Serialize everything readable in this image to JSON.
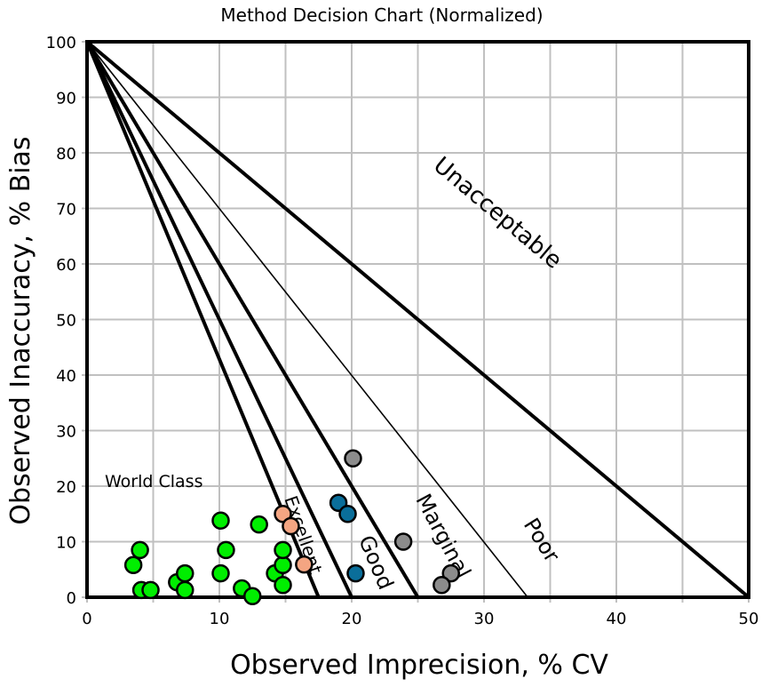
{
  "chart_data": {
    "type": "scatter",
    "title": "Method Decision Chart (Normalized)",
    "xlabel": "Observed Imprecision, % CV",
    "ylabel": "Observed Inaccuracy, % Bias",
    "xlim": [
      0,
      50
    ],
    "ylim": [
      0,
      100
    ],
    "xticks": [
      0,
      10,
      20,
      30,
      40,
      50
    ],
    "yticks": [
      0,
      10,
      20,
      30,
      40,
      50,
      60,
      70,
      80,
      90,
      100
    ],
    "grid": true,
    "decision_lines": [
      {
        "from": [
          0,
          100
        ],
        "to": [
          50,
          0
        ],
        "weight": "thick"
      },
      {
        "from": [
          0,
          100
        ],
        "to": [
          33.3,
          0
        ],
        "weight": "thin"
      },
      {
        "from": [
          0,
          100
        ],
        "to": [
          25,
          0
        ],
        "weight": "thick"
      },
      {
        "from": [
          0,
          100
        ],
        "to": [
          20,
          0
        ],
        "weight": "thick"
      },
      {
        "from": [
          0,
          100
        ],
        "to": [
          17.5,
          0
        ],
        "weight": "thick"
      }
    ],
    "zone_labels": [
      "Unacceptable",
      "Poor",
      "Marginal",
      "Good",
      "Excellent",
      "World Class"
    ],
    "series": [
      {
        "color": "#00ee00",
        "points": [
          [
            3.5,
            5.8
          ],
          [
            4.0,
            8.5
          ],
          [
            4.1,
            1.3
          ],
          [
            4.8,
            1.3
          ],
          [
            6.8,
            2.7
          ],
          [
            7.4,
            4.3
          ],
          [
            7.4,
            1.3
          ],
          [
            10.1,
            13.8
          ],
          [
            10.1,
            4.3
          ],
          [
            10.5,
            8.5
          ],
          [
            11.7,
            1.6
          ],
          [
            12.5,
            0.2
          ],
          [
            13.0,
            13.1
          ],
          [
            14.2,
            4.3
          ],
          [
            14.8,
            5.8
          ],
          [
            14.8,
            8.5
          ],
          [
            14.8,
            2.2
          ]
        ]
      },
      {
        "color": "#f4a582",
        "points": [
          [
            14.8,
            15.0
          ],
          [
            15.4,
            12.8
          ],
          [
            16.4,
            5.9
          ]
        ]
      },
      {
        "color": "#0a6e9a",
        "points": [
          [
            19.0,
            17.0
          ],
          [
            19.7,
            15.0
          ],
          [
            20.3,
            4.3
          ]
        ]
      },
      {
        "color": "#8c8c8c",
        "points": [
          [
            20.1,
            25.0
          ],
          [
            23.9,
            10.0
          ],
          [
            27.5,
            4.3
          ],
          [
            26.8,
            2.2
          ]
        ]
      }
    ]
  }
}
